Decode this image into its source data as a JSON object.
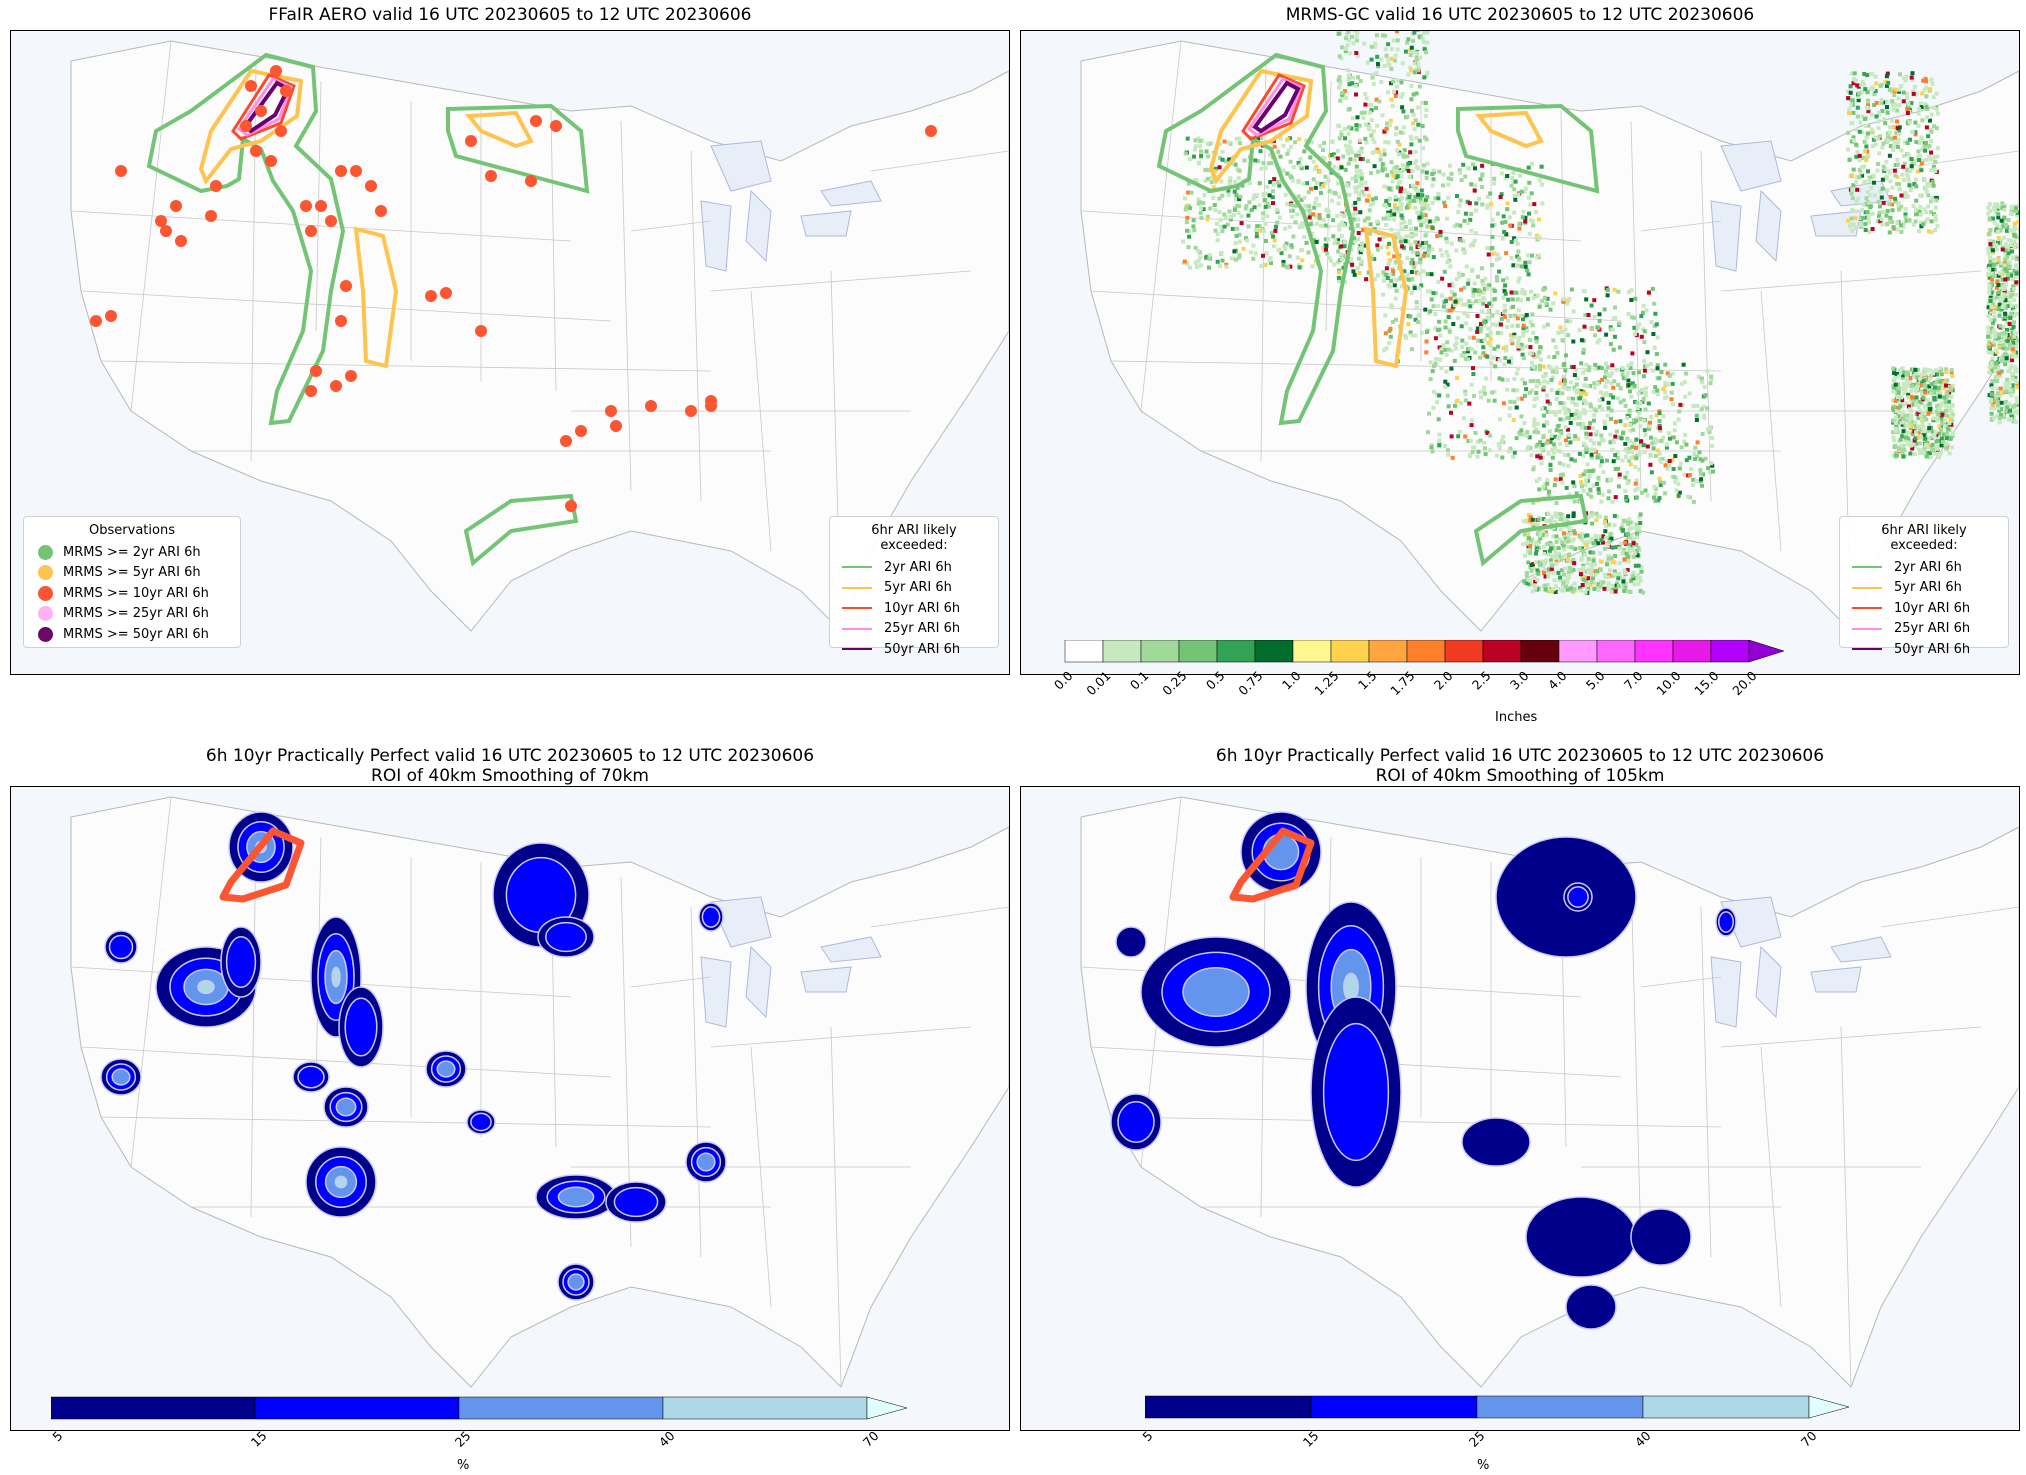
{
  "panels": {
    "p1": {
      "title": "FFaIR AERO valid 16 UTC 20230605 to 12 UTC 20230606"
    },
    "p2": {
      "title": "MRMS-GC valid 16 UTC 20230605 to 12 UTC 20230606"
    },
    "p3": {
      "title_line1": "6h 10yr Practically Perfect valid 16 UTC 20230605 to 12 UTC 20230606",
      "title_line2": "ROI of 40km Smoothing of 70km"
    },
    "p4": {
      "title_line1": "6h 10yr Practically Perfect valid 16 UTC 20230605 to 12 UTC 20230606",
      "title_line2": "ROI of 40km Smoothing of 105km"
    }
  },
  "obs_legend": {
    "title": "Observations",
    "items": [
      {
        "label": "MRMS >= 2yr ARI 6h",
        "color": "#74c476"
      },
      {
        "label": "MRMS >= 5yr ARI 6h",
        "color": "#fec44f"
      },
      {
        "label": "MRMS >= 10yr ARI 6h",
        "color": "#fb5531"
      },
      {
        "label": "MRMS >= 25yr ARI 6h",
        "color": "#ffb3f0"
      },
      {
        "label": "MRMS >= 50yr ARI 6h",
        "color": "#6a0a66"
      }
    ]
  },
  "ari_legend": {
    "title": "6hr ARI likely exceeded:",
    "items": [
      {
        "label": "2yr ARI 6h",
        "color": "#74c476"
      },
      {
        "label": "5yr ARI 6h",
        "color": "#fec44f"
      },
      {
        "label": "10yr ARI 6h",
        "color": "#fb4a2a"
      },
      {
        "label": "25yr ARI 6h",
        "color": "#ff8ce6"
      },
      {
        "label": "50yr ARI 6h",
        "color": "#6a0070"
      }
    ]
  },
  "precip_colorbar": {
    "label": "Inches",
    "ticks": [
      "0.0",
      "0.01",
      "0.1",
      "0.25",
      "0.5",
      "0.75",
      "1.0",
      "1.25",
      "1.5",
      "1.75",
      "2.0",
      "2.5",
      "3.0",
      "4.0",
      "5.0",
      "7.0",
      "10.0",
      "15.0",
      "20.0"
    ],
    "colors": [
      "#ffffff",
      "#c7e9c0",
      "#a1d99b",
      "#74c476",
      "#31a354",
      "#006d2c",
      "#fff68f",
      "#ffd24d",
      "#ffa640",
      "#ff7f2a",
      "#f03b20",
      "#bd0026",
      "#67000d",
      "#ff99ff",
      "#ff66ff",
      "#ff33ff",
      "#e619e6",
      "#b300ff"
    ],
    "extend_color": "#9300d3"
  },
  "pp_colorbar": {
    "label": "%",
    "ticks": [
      "5",
      "15",
      "25",
      "40",
      "70"
    ],
    "colors": [
      "#00008b",
      "#0000ff",
      "#6495ed",
      "#add8e6"
    ],
    "extend_color": "#e0ffff"
  }
}
